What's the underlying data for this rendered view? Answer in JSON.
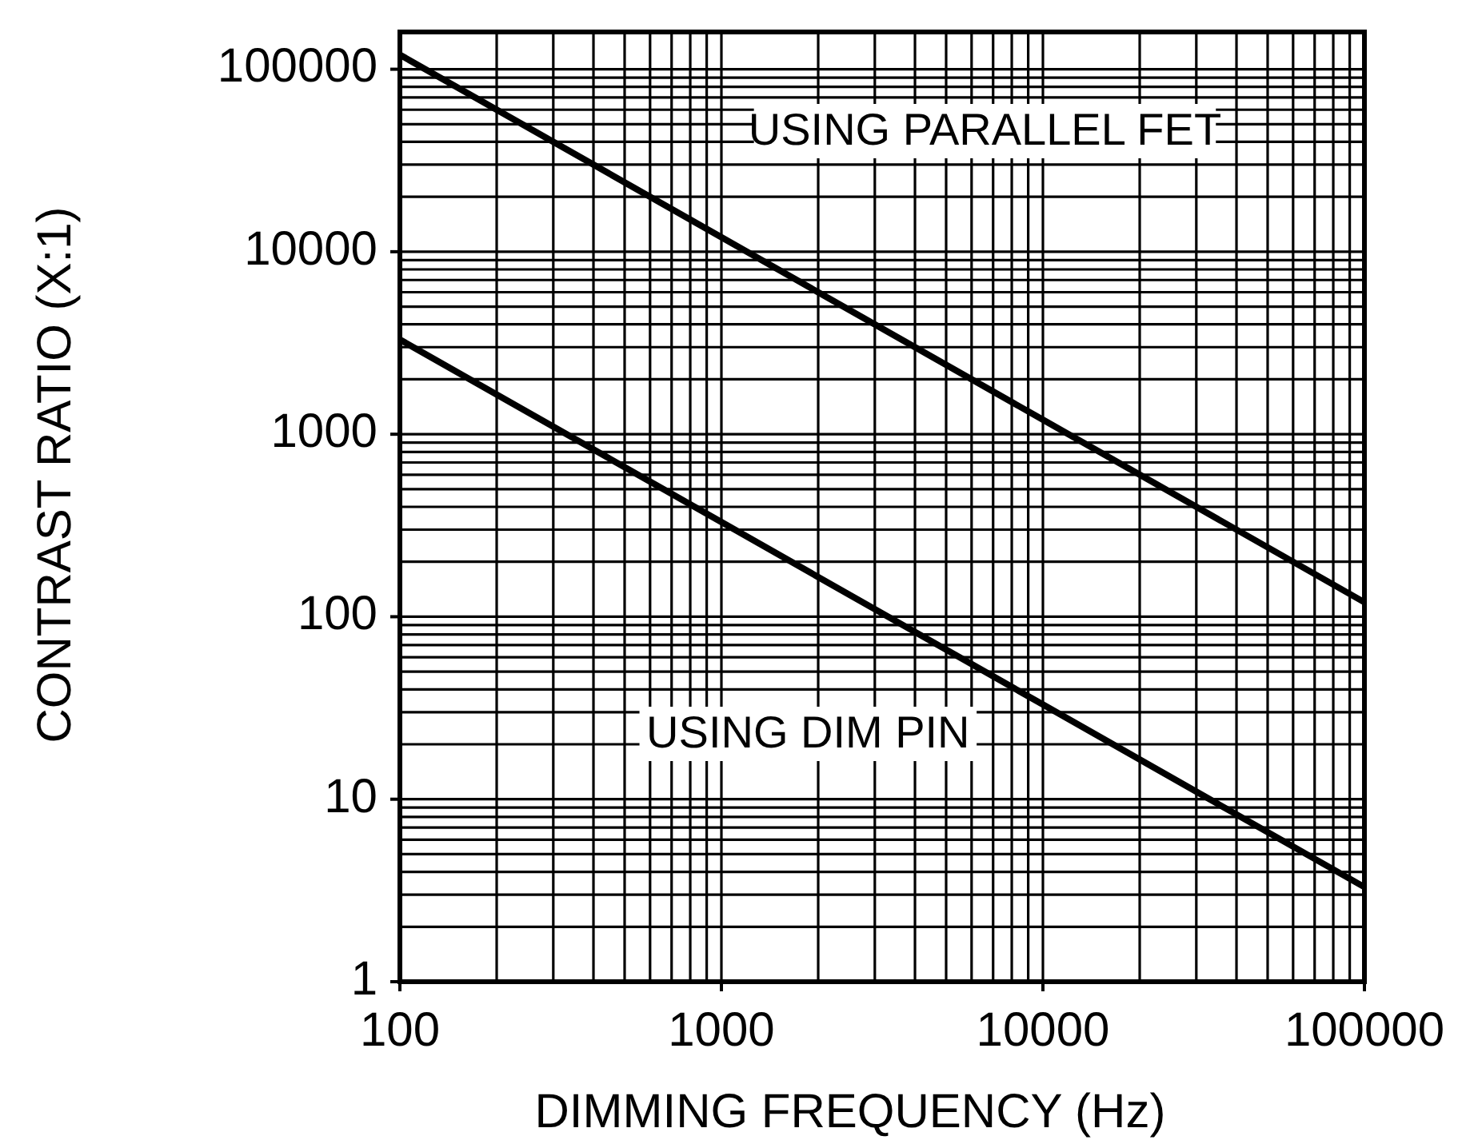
{
  "chart_data": {
    "type": "line",
    "xlabel": "DIMMING FREQUENCY (Hz)",
    "ylabel": "CONTRAST RATIO (X:1)",
    "log": "xy",
    "grid": true,
    "line_style": "solid",
    "x": [
      100,
      1000,
      10000,
      100000
    ],
    "xlim": [
      100,
      100000
    ],
    "xticks": [
      100,
      1000,
      10000,
      100000
    ],
    "ylim": [
      1,
      160000
    ],
    "yticks": [
      1,
      10,
      100,
      1000,
      10000,
      100000
    ],
    "series": [
      {
        "name": "USING PARALLEL FET",
        "color": "#000000",
        "values": [
          120000,
          12000,
          1200,
          120
        ]
      },
      {
        "name": "USING DIM PIN",
        "color": "#000000",
        "values": [
          3300,
          330,
          33,
          3.3
        ]
      }
    ]
  }
}
